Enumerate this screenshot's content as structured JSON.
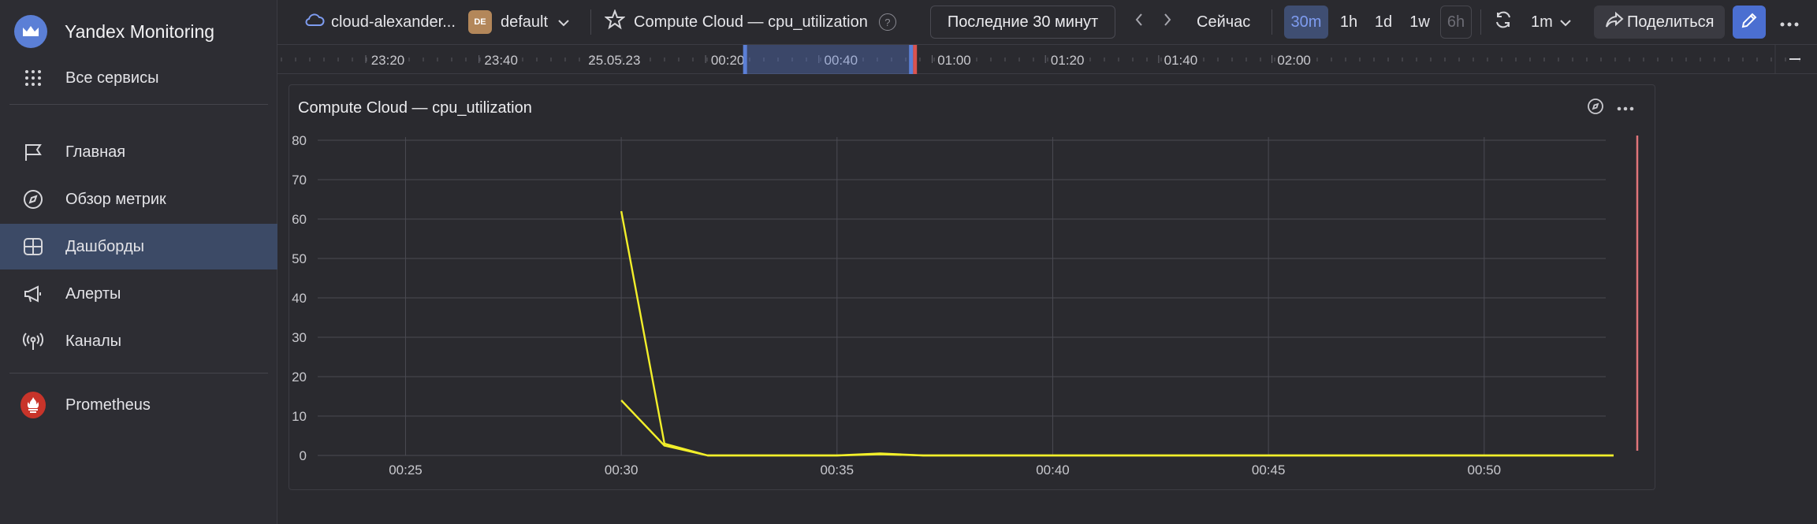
{
  "app": {
    "name": "Yandex Monitoring"
  },
  "sidebar": {
    "all_services": "Все сервисы",
    "items": [
      {
        "label": "Главная",
        "icon": "flag-icon"
      },
      {
        "label": "Обзор метрик",
        "icon": "compass-icon"
      },
      {
        "label": "Дашборды",
        "icon": "dashboard-icon",
        "active": true
      },
      {
        "label": "Алерты",
        "icon": "megaphone-icon"
      },
      {
        "label": "Каналы",
        "icon": "antenna-icon"
      }
    ],
    "prometheus": "Prometheus"
  },
  "header": {
    "cloud": "cloud-alexander...",
    "folder_badge": "DE",
    "folder": "default",
    "dashboard_title": "Compute Cloud — cpu_utilization",
    "help": "?",
    "time_range": "Последние 30 минут",
    "now": "Сейчас",
    "presets": [
      {
        "label": "30m",
        "state": "active"
      },
      {
        "label": "1h",
        "state": "normal"
      },
      {
        "label": "1d",
        "state": "normal"
      },
      {
        "label": "1w",
        "state": "normal"
      },
      {
        "label": "6h",
        "state": "disabled"
      }
    ],
    "refresh_interval": "1m",
    "share": "Поделиться"
  },
  "timeline": {
    "labels": [
      "23:20",
      "23:40",
      "25.05.23",
      "00:20",
      "00:40",
      "01:00",
      "01:20",
      "01:40",
      "02:00"
    ],
    "selection": {
      "from": "00:23",
      "to": "00:53"
    },
    "accent": "#5b7fd6",
    "now_marker_color": "#d9534f"
  },
  "panel": {
    "title": "Compute Cloud — cpu_utilization"
  },
  "chart_data": {
    "type": "line",
    "title": "Compute Cloud — cpu_utilization",
    "xlabel": "",
    "ylabel": "",
    "ylim": [
      0,
      80
    ],
    "yticks": [
      0,
      10,
      20,
      30,
      40,
      50,
      60,
      70,
      80
    ],
    "xticks": [
      "00:25",
      "00:30",
      "00:35",
      "00:40",
      "00:45",
      "00:50"
    ],
    "xlim": [
      "00:23",
      "00:53"
    ],
    "grid": true,
    "legend": "none",
    "now_marker": "00:53",
    "series": [
      {
        "color": "#f2ef2a",
        "x": [
          "00:30",
          "00:31",
          "00:32",
          "00:33",
          "00:34",
          "00:35",
          "00:36",
          "00:37",
          "00:38",
          "00:39",
          "00:40",
          "00:41",
          "00:42",
          "00:43",
          "00:44",
          "00:45",
          "00:46",
          "00:47",
          "00:48",
          "00:49",
          "00:50",
          "00:51",
          "00:52",
          "00:53"
        ],
        "values": [
          62,
          3,
          0,
          0,
          0,
          0,
          0.5,
          0,
          0,
          0,
          0,
          0,
          0,
          0,
          0,
          0,
          0,
          0,
          0,
          0,
          0,
          0,
          0,
          0
        ]
      },
      {
        "color": "#f2ef2a",
        "x": [
          "00:30",
          "00:31",
          "00:32",
          "00:33",
          "00:34",
          "00:35",
          "00:36",
          "00:37",
          "00:38",
          "00:39",
          "00:40",
          "00:41",
          "00:42",
          "00:43",
          "00:44",
          "00:45",
          "00:46",
          "00:47",
          "00:48",
          "00:49",
          "00:50",
          "00:51",
          "00:52",
          "00:53"
        ],
        "values": [
          14,
          2.5,
          0,
          0,
          0,
          0,
          0.3,
          0,
          0,
          0,
          0,
          0,
          0,
          0,
          0,
          0,
          0,
          0,
          0,
          0,
          0,
          0,
          0,
          0
        ]
      }
    ]
  }
}
